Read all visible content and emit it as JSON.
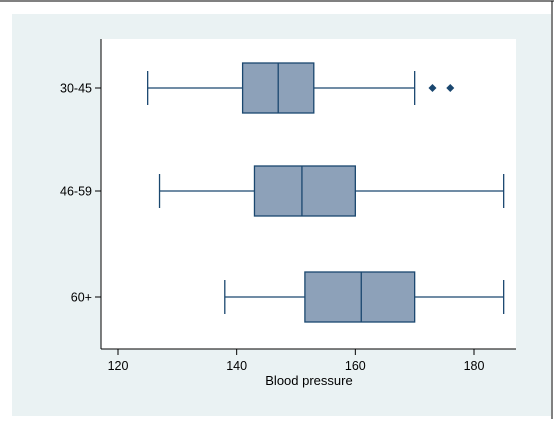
{
  "chart_data": {
    "type": "boxplot",
    "orientation": "horizontal",
    "xlabel": "Blood pressure",
    "ylabel": "",
    "xlim": [
      115,
      187
    ],
    "xticks": [
      120,
      140,
      160,
      180
    ],
    "grid": false,
    "legend": "none",
    "categories": [
      "30-45",
      "46-59",
      "60+"
    ],
    "boxes": [
      {
        "category": "30-45",
        "whisker_low": 125,
        "q1": 141,
        "median": 147,
        "q3": 153,
        "whisker_high": 170,
        "outliers": [
          173,
          176
        ]
      },
      {
        "category": "46-59",
        "whisker_low": 127,
        "q1": 143,
        "median": 151,
        "q3": 160,
        "whisker_high": 185,
        "outliers": []
      },
      {
        "category": "60+",
        "whisker_low": 138,
        "q1": 151.5,
        "median": 161,
        "q3": 170,
        "whisker_high": 185,
        "outliers": []
      }
    ],
    "colors": {
      "box_fill": "#8da1b9",
      "stroke": "#1a476f",
      "outlier": "#1a476f",
      "plot_background": "#ffffff",
      "outer_background": "#eaf2f3"
    }
  }
}
